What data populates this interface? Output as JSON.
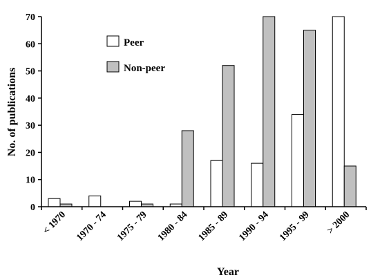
{
  "chart_data": {
    "type": "bar",
    "title": "",
    "xlabel": "Year",
    "ylabel": "No. of publications",
    "ylim": [
      0,
      70
    ],
    "yticks": [
      0,
      10,
      20,
      30,
      40,
      50,
      60,
      70
    ],
    "categories": [
      "< 1970",
      "1970 - 74",
      "1975 - 79",
      "1980 - 84",
      "1985 - 89",
      "1990 - 94",
      "1995 - 99",
      "> 2000"
    ],
    "series": [
      {
        "name": "Peer",
        "color": "#ffffff",
        "values": [
          3,
          4,
          2,
          1,
          17,
          16,
          34,
          70
        ]
      },
      {
        "name": "Non-peer",
        "color": "#c0c0c0",
        "values": [
          1,
          0,
          1,
          28,
          52,
          70,
          65,
          15
        ]
      }
    ],
    "legend": {
      "position": "top-left"
    },
    "grid": false
  }
}
